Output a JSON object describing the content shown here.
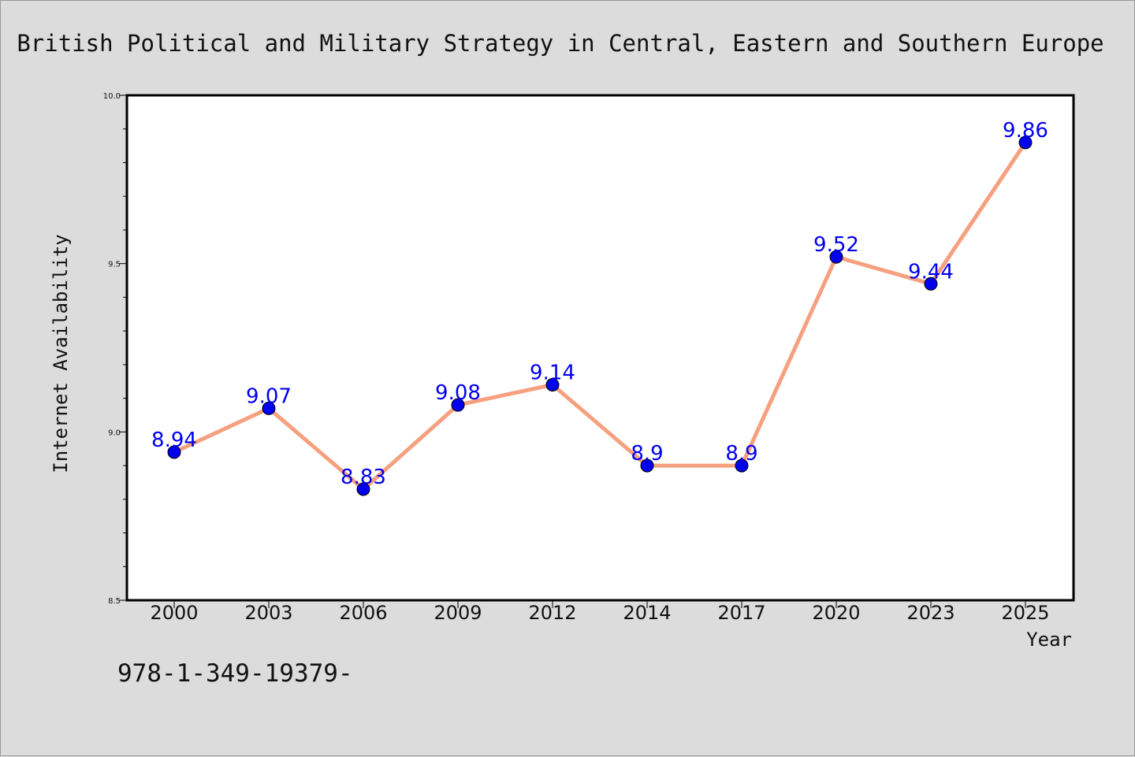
{
  "chart_data": {
    "type": "line",
    "title": "British Political and Military Strategy in Central, Eastern and Southern Europe",
    "xlabel": "Year",
    "ylabel": "Internet Availability",
    "categories": [
      "2000",
      "2003",
      "2006",
      "2009",
      "2012",
      "2014",
      "2017",
      "2020",
      "2023",
      "2025"
    ],
    "values": [
      8.94,
      9.07,
      8.83,
      9.08,
      9.14,
      8.9,
      8.9,
      9.52,
      9.44,
      9.86
    ],
    "data_labels": [
      "8.94",
      "9.07",
      "8.83",
      "9.08",
      "9.14",
      "8.9",
      "8.9",
      "9.52",
      "9.44",
      "9.86"
    ],
    "ylim": [
      8.5,
      10.0
    ],
    "yticks": [
      {
        "value": 8.5,
        "label": "8.5"
      },
      {
        "value": 9.0,
        "label": "9.0"
      },
      {
        "value": 9.5,
        "label": "9.5"
      },
      {
        "value": 10.0,
        "label": "10.0"
      }
    ],
    "minor_tick_step": 0.1,
    "grid": false,
    "legend": "none"
  },
  "footer_text": "978-1-349-19379-",
  "colors": {
    "background": "#dcdcdc",
    "plot_background": "#ffffff",
    "line": "#f6a07f",
    "marker": "#0000ee",
    "data_label": "#0000ee",
    "text": "#111111"
  }
}
